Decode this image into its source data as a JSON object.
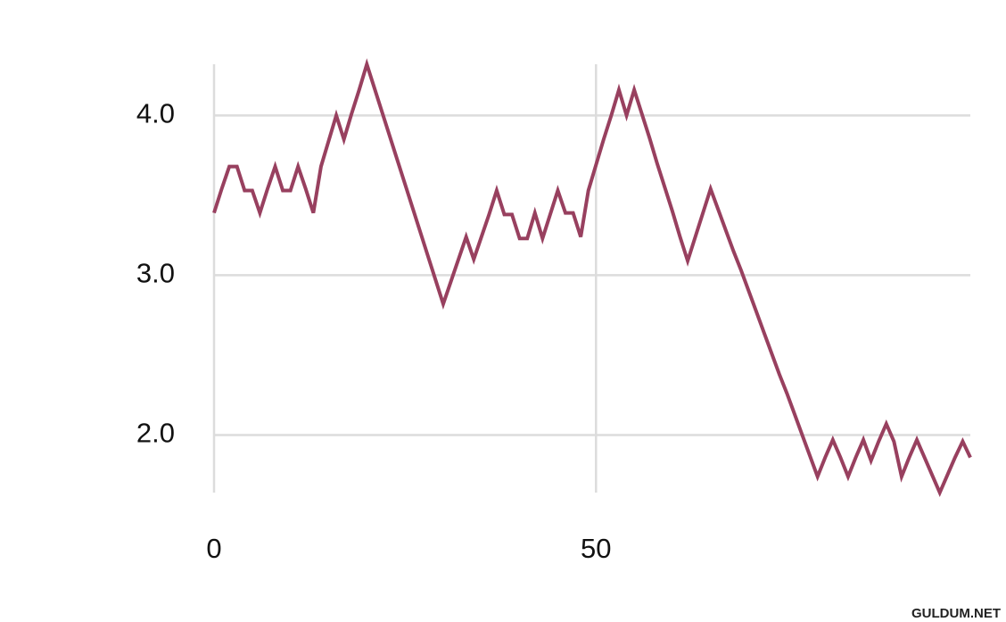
{
  "chart_data": {
    "type": "line",
    "x": [
      0,
      1,
      2,
      3,
      4,
      5,
      6,
      7,
      8,
      9,
      10,
      11,
      12,
      13,
      14,
      15,
      16,
      17,
      18,
      19,
      20,
      21,
      22,
      23,
      24,
      25,
      26,
      27,
      28,
      29,
      30,
      31,
      32,
      33,
      34,
      35,
      36,
      37,
      38,
      39,
      40,
      41,
      42,
      43,
      44,
      45,
      46,
      47,
      48,
      49,
      50,
      51,
      52,
      53,
      54,
      55,
      56,
      57,
      58,
      59,
      60,
      61,
      62,
      63,
      64,
      65,
      66,
      67,
      68,
      69,
      70,
      71,
      72,
      73,
      74,
      75,
      76,
      77,
      78,
      79,
      80,
      81,
      82,
      83,
      84,
      85,
      86,
      87,
      88,
      89,
      90,
      91,
      92,
      93,
      94,
      95,
      96,
      97,
      98,
      99
    ],
    "series": [
      {
        "color": "#98405f",
        "values": [
          3.39,
          3.54,
          3.68,
          3.68,
          3.53,
          3.53,
          3.39,
          3.54,
          3.68,
          3.53,
          3.53,
          3.68,
          3.54,
          3.39,
          3.68,
          3.84,
          4.0,
          3.85,
          4.01,
          4.16,
          4.32,
          4.17,
          4.02,
          3.87,
          3.72,
          3.57,
          3.42,
          3.27,
          3.12,
          2.97,
          2.82,
          2.96,
          3.1,
          3.24,
          3.1,
          3.24,
          3.38,
          3.53,
          3.38,
          3.38,
          3.23,
          3.23,
          3.39,
          3.23,
          3.38,
          3.53,
          3.39,
          3.39,
          3.24,
          3.53,
          3.69,
          3.85,
          4.0,
          4.16,
          4.0,
          4.16,
          4.01,
          3.86,
          3.7,
          3.55,
          3.4,
          3.24,
          3.09,
          3.24,
          3.39,
          3.54,
          3.41,
          3.28,
          3.15,
          3.03,
          2.9,
          2.77,
          2.64,
          2.51,
          2.38,
          2.26,
          2.13,
          2.0,
          1.87,
          1.74,
          1.86,
          1.97,
          1.86,
          1.74,
          1.86,
          1.97,
          1.84,
          1.96,
          2.07,
          1.96,
          1.74,
          1.86,
          1.97,
          1.86,
          1.75,
          1.64,
          1.75,
          1.86,
          1.96,
          1.86
        ]
      }
    ],
    "xlim": [
      0,
      99
    ],
    "xticks": [
      0,
      50
    ],
    "ylim": [
      1.64,
      4.32
    ],
    "yticks": [
      {
        "value": 2,
        "label": "2.0"
      },
      {
        "value": 3,
        "label": "3.0"
      },
      {
        "value": 4,
        "label": "4.0"
      }
    ],
    "grid": true
  },
  "watermark": "GULDUM.NET"
}
